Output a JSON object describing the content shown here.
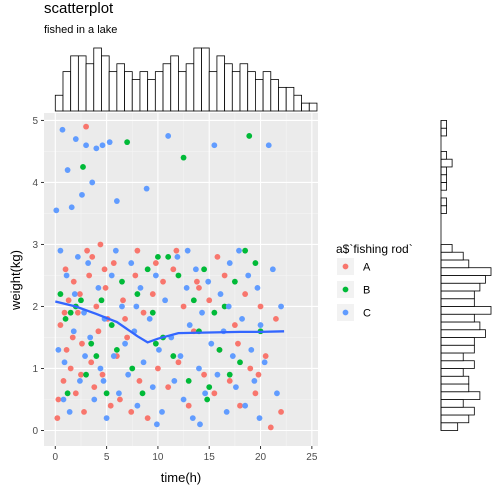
{
  "chart_data": {
    "type": "scatter",
    "title": "scatterplot",
    "subtitle": "fished in a lake",
    "xlabel": "time(h)",
    "ylabel": "weight(kg)",
    "xlim": [
      -1.1,
      25.6
    ],
    "ylim": [
      -0.25,
      5.12
    ],
    "x_ticks": [
      0,
      5,
      10,
      15,
      20,
      25
    ],
    "y_ticks": [
      0,
      1,
      2,
      3,
      4,
      5
    ],
    "x_tick_labels": [
      "0",
      "5",
      "10",
      "15",
      "20",
      "25"
    ],
    "y_tick_labels": [
      "0",
      "1",
      "2",
      "3",
      "4",
      "5"
    ],
    "grid": true,
    "legend": {
      "title": "a$`fishing rod`",
      "position": "right",
      "entries": [
        {
          "label": "A",
          "color": "#F8766D"
        },
        {
          "label": "B",
          "color": "#00BA38"
        },
        {
          "label": "C",
          "color": "#619CFF"
        }
      ]
    },
    "series": [
      {
        "name": "A",
        "color": "#F8766D",
        "points": [
          [
            0.2,
            0.2
          ],
          [
            0.3,
            0.5
          ],
          [
            0.5,
            1.7
          ],
          [
            0.8,
            0.8
          ],
          [
            1.0,
            2.6
          ],
          [
            1.1,
            1.3
          ],
          [
            1.3,
            2.1
          ],
          [
            1.5,
            1.0
          ],
          [
            1.8,
            2.4
          ],
          [
            2.0,
            0.6
          ],
          [
            2.2,
            1.9
          ],
          [
            2.4,
            2.2
          ],
          [
            2.6,
            1.4
          ],
          [
            2.8,
            0.3
          ],
          [
            3.0,
            4.9
          ],
          [
            3.1,
            2.9
          ],
          [
            3.3,
            2.5
          ],
          [
            3.5,
            1.1
          ],
          [
            3.8,
            0.7
          ],
          [
            4.0,
            2.0
          ],
          [
            4.2,
            1.6
          ],
          [
            4.4,
            3.0
          ],
          [
            4.6,
            0.9
          ],
          [
            4.9,
            2.3
          ],
          [
            5.1,
            1.8
          ],
          [
            5.4,
            0.4
          ],
          [
            5.7,
            2.7
          ],
          [
            6.0,
            1.2
          ],
          [
            6.3,
            0.5
          ],
          [
            6.6,
            2.1
          ],
          [
            7.0,
            1.5
          ],
          [
            7.4,
            0.3
          ],
          [
            7.8,
            2.5
          ],
          [
            8.2,
            0.8
          ],
          [
            8.6,
            1.9
          ],
          [
            9.0,
            0.2
          ],
          [
            9.5,
            2.2
          ],
          [
            10.0,
            1.0
          ],
          [
            10.5,
            2.4
          ],
          [
            11.0,
            0.7
          ],
          [
            11.5,
            2.6
          ],
          [
            12.0,
            1.1
          ],
          [
            12.5,
            2.0
          ],
          [
            13.0,
            0.4
          ],
          [
            13.5,
            1.6
          ],
          [
            14.0,
            2.3
          ],
          [
            14.5,
            0.9
          ],
          [
            15.0,
            2.1
          ],
          [
            15.5,
            0.6
          ],
          [
            16.0,
            1.3
          ],
          [
            16.5,
            2.5
          ],
          [
            17.0,
            0.8
          ],
          [
            17.5,
            1.7
          ],
          [
            18.0,
            0.4
          ],
          [
            18.5,
            2.2
          ],
          [
            19.0,
            1.0
          ],
          [
            19.5,
            0.6
          ],
          [
            20.0,
            2.0
          ],
          [
            20.5,
            1.2
          ],
          [
            21.0,
            0.05
          ],
          [
            21.5,
            1.8
          ],
          [
            22.0,
            0.3
          ],
          [
            0.9,
            1.9
          ],
          [
            1.7,
            1.5
          ],
          [
            2.5,
            0.9
          ],
          [
            3.6,
            2.8
          ],
          [
            4.8,
            2.6
          ],
          [
            6.8,
            1.8
          ],
          [
            8.0,
            2.9
          ],
          [
            9.8,
            2.7
          ],
          [
            11.8,
            2.9
          ],
          [
            13.8,
            2.4
          ],
          [
            15.8,
            2.8
          ],
          [
            17.8,
            1.4
          ],
          [
            19.8,
            0.9
          ]
        ]
      },
      {
        "name": "B",
        "color": "#00BA38",
        "points": [
          [
            0.5,
            2.2
          ],
          [
            1.0,
            1.8
          ],
          [
            1.5,
            1.9
          ],
          [
            2.0,
            2.0
          ],
          [
            2.5,
            2.1
          ],
          [
            3.0,
            0.9
          ],
          [
            3.5,
            1.4
          ],
          [
            4.0,
            1.2
          ],
          [
            4.5,
            2.1
          ],
          [
            5.0,
            0.6
          ],
          [
            5.5,
            1.7
          ],
          [
            6.0,
            1.3
          ],
          [
            6.5,
            2.4
          ],
          [
            7.0,
            4.65
          ],
          [
            7.5,
            1.0
          ],
          [
            8.0,
            2.2
          ],
          [
            8.5,
            0.6
          ],
          [
            9.0,
            2.6
          ],
          [
            9.5,
            1.9
          ],
          [
            10.0,
            2.8
          ],
          [
            10.5,
            1.5
          ],
          [
            11.0,
            2.8
          ],
          [
            11.5,
            1.2
          ],
          [
            12.0,
            2.5
          ],
          [
            12.5,
            4.4
          ],
          [
            13.0,
            0.8
          ],
          [
            13.5,
            2.1
          ],
          [
            14.0,
            1.6
          ],
          [
            14.5,
            2.6
          ],
          [
            15.0,
            0.7
          ],
          [
            15.5,
            1.9
          ],
          [
            16.0,
            1.3
          ],
          [
            16.5,
            2.0
          ],
          [
            17.0,
            0.9
          ],
          [
            17.5,
            2.4
          ],
          [
            18.0,
            1.1
          ],
          [
            18.5,
            2.9
          ],
          [
            18.9,
            4.75
          ],
          [
            19.5,
            2.7
          ],
          [
            20.0,
            1.6
          ],
          [
            2.7,
            4.25
          ],
          [
            1.2,
            0.6
          ],
          [
            9.8,
            1.4
          ],
          [
            14.8,
            0.5
          ]
        ]
      },
      {
        "name": "C",
        "color": "#619CFF",
        "points": [
          [
            0.1,
            3.55
          ],
          [
            0.3,
            1.3
          ],
          [
            0.5,
            2.9
          ],
          [
            0.7,
            4.85
          ],
          [
            0.9,
            1.1
          ],
          [
            1.1,
            2.5
          ],
          [
            1.2,
            4.2
          ],
          [
            1.4,
            0.3
          ],
          [
            1.6,
            3.6
          ],
          [
            1.8,
            1.6
          ],
          [
            2.0,
            4.7
          ],
          [
            2.2,
            2.8
          ],
          [
            2.4,
            0.8
          ],
          [
            2.6,
            3.8
          ],
          [
            2.8,
            1.9
          ],
          [
            3.0,
            4.6
          ],
          [
            3.2,
            2.7
          ],
          [
            3.4,
            1.5
          ],
          [
            3.6,
            4.0
          ],
          [
            3.8,
            0.5
          ],
          [
            4.0,
            4.55
          ],
          [
            4.2,
            2.3
          ],
          [
            4.4,
            1.0
          ],
          [
            4.6,
            4.6
          ],
          [
            4.8,
            1.8
          ],
          [
            5.0,
            0.2
          ],
          [
            5.3,
            4.65
          ],
          [
            5.5,
            2.5
          ],
          [
            5.7,
            1.2
          ],
          [
            6.0,
            3.7
          ],
          [
            6.2,
            0.6
          ],
          [
            6.5,
            2.0
          ],
          [
            6.8,
            1.4
          ],
          [
            7.1,
            0.9
          ],
          [
            7.4,
            2.7
          ],
          [
            7.7,
            1.6
          ],
          [
            8.0,
            0.4
          ],
          [
            8.3,
            2.3
          ],
          [
            8.6,
            1.1
          ],
          [
            8.9,
            3.9
          ],
          [
            9.2,
            1.8
          ],
          [
            9.5,
            0.7
          ],
          [
            9.8,
            2.5
          ],
          [
            10.1,
            1.3
          ],
          [
            10.4,
            0.3
          ],
          [
            10.7,
            2.1
          ],
          [
            11.0,
            4.75
          ],
          [
            11.3,
            1.5
          ],
          [
            11.6,
            0.8
          ],
          [
            11.9,
            2.8
          ],
          [
            12.2,
            1.2
          ],
          [
            12.5,
            0.5
          ],
          [
            12.8,
            2.3
          ],
          [
            13.1,
            1.7
          ],
          [
            13.4,
            0.2
          ],
          [
            13.7,
            2.6
          ],
          [
            14.0,
            1.0
          ],
          [
            14.3,
            1.9
          ],
          [
            14.6,
            0.6
          ],
          [
            14.9,
            2.4
          ],
          [
            15.2,
            1.4
          ],
          [
            15.5,
            4.6
          ],
          [
            15.8,
            0.9
          ],
          [
            16.1,
            2.2
          ],
          [
            16.4,
            1.6
          ],
          [
            16.7,
            0.3
          ],
          [
            17.0,
            2.7
          ],
          [
            17.3,
            1.2
          ],
          [
            17.6,
            0.7
          ],
          [
            17.9,
            2.9
          ],
          [
            18.2,
            1.8
          ],
          [
            18.5,
            0.4
          ],
          [
            18.8,
            2.5
          ],
          [
            19.1,
            1.3
          ],
          [
            19.4,
            0.8
          ],
          [
            19.7,
            2.3
          ],
          [
            20.0,
            1.7
          ],
          [
            20.4,
            1.1
          ],
          [
            20.8,
            4.6
          ],
          [
            21.2,
            2.6
          ],
          [
            21.6,
            0.6
          ],
          [
            22.0,
            2.0
          ],
          [
            0.8,
            0.5
          ],
          [
            1.9,
            2.2
          ],
          [
            2.9,
            1.2
          ],
          [
            4.7,
            0.8
          ],
          [
            5.9,
            2.9
          ],
          [
            7.9,
            2.0
          ],
          [
            9.9,
            0.1
          ],
          [
            12.9,
            2.9
          ],
          [
            14.1,
            0.1
          ],
          [
            16.9,
            2.0
          ],
          [
            19.9,
            0.2
          ]
        ]
      }
    ],
    "smooth_line": {
      "color": "#3366FF",
      "x": [
        0,
        2,
        4,
        6,
        8,
        9,
        10,
        12,
        15,
        18,
        20,
        22.3
      ],
      "y": [
        2.08,
        2.0,
        1.88,
        1.75,
        1.52,
        1.42,
        1.48,
        1.57,
        1.58,
        1.59,
        1.59,
        1.6
      ]
    },
    "x_marginal_histogram": {
      "bin_width": 0.75,
      "counts": [
        2,
        5,
        7,
        7,
        6,
        8,
        7,
        5,
        6,
        5,
        4,
        5,
        4,
        5,
        6,
        7,
        5,
        6,
        8,
        8,
        5,
        7,
        6,
        5,
        6,
        5,
        4,
        5,
        4,
        3,
        3,
        2,
        1,
        1
      ]
    },
    "y_marginal_histogram": {
      "bin_width": 0.125,
      "counts": [
        3,
        5,
        6,
        4,
        7,
        5,
        5,
        4,
        6,
        4,
        6,
        6,
        8,
        7,
        6,
        9,
        6,
        6,
        7,
        8,
        9,
        5,
        4,
        2,
        0,
        0,
        0,
        0,
        1,
        1,
        0,
        1,
        1,
        1,
        2,
        1,
        0,
        0,
        1,
        1
      ]
    }
  }
}
